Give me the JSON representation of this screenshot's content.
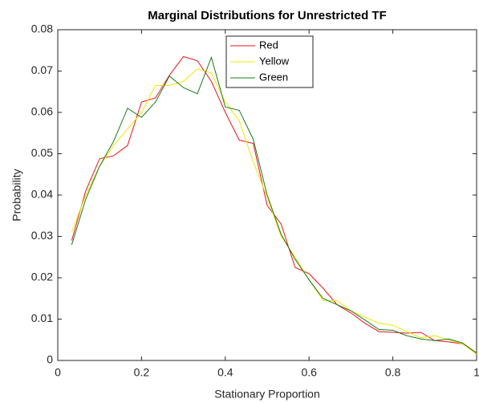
{
  "chart_data": {
    "type": "line",
    "title": "Marginal Distributions for Unrestricted TF",
    "xlabel": "Stationary Proportion",
    "ylabel": "Probability",
    "x": [
      0.0333,
      0.0667,
      0.1,
      0.1333,
      0.1667,
      0.2,
      0.2333,
      0.2667,
      0.3,
      0.3333,
      0.3667,
      0.4,
      0.4333,
      0.4667,
      0.5,
      0.5333,
      0.5667,
      0.6,
      0.6333,
      0.6667,
      0.7,
      0.7333,
      0.7667,
      0.8,
      0.8333,
      0.8667,
      0.9,
      0.9333,
      0.9667,
      1.0
    ],
    "series": [
      {
        "name": "Red",
        "color": "#e8151b",
        "values": [
          0.029,
          0.041,
          0.0488,
          0.0495,
          0.052,
          0.0625,
          0.0635,
          0.069,
          0.0735,
          0.0725,
          0.0675,
          0.06,
          0.0533,
          0.0525,
          0.0375,
          0.033,
          0.0225,
          0.021,
          0.0175,
          0.0135,
          0.0115,
          0.009,
          0.007,
          0.0068,
          0.0066,
          0.0068,
          0.0048,
          0.0045,
          0.004,
          0.0018
        ]
      },
      {
        "name": "Yellow",
        "color": "#f2e600",
        "values": [
          0.031,
          0.04,
          0.047,
          0.052,
          0.056,
          0.06,
          0.0665,
          0.0665,
          0.0675,
          0.0705,
          0.0695,
          0.0625,
          0.058,
          0.048,
          0.0395,
          0.03,
          0.025,
          0.0195,
          0.0145,
          0.0145,
          0.012,
          0.0105,
          0.009,
          0.0085,
          0.007,
          0.0055,
          0.006,
          0.005,
          0.004,
          0.0015
        ]
      },
      {
        "name": "Green",
        "color": "#1a7a1a",
        "values": [
          0.028,
          0.039,
          0.047,
          0.053,
          0.061,
          0.0588,
          0.0625,
          0.0688,
          0.066,
          0.0645,
          0.0733,
          0.0613,
          0.0605,
          0.0535,
          0.04,
          0.0305,
          0.0245,
          0.0195,
          0.015,
          0.0135,
          0.012,
          0.0098,
          0.0075,
          0.0073,
          0.006,
          0.0052,
          0.0048,
          0.0052,
          0.0042,
          0.0018
        ]
      }
    ],
    "xlim": [
      0,
      1
    ],
    "xticks": [
      0,
      0.2,
      0.4,
      0.6,
      0.8,
      1
    ],
    "ylim": [
      0,
      0.08
    ],
    "yticks": [
      0,
      0.01,
      0.02,
      0.03,
      0.04,
      0.05,
      0.06,
      0.07,
      0.08
    ],
    "legend": "top-center",
    "grid": false
  }
}
